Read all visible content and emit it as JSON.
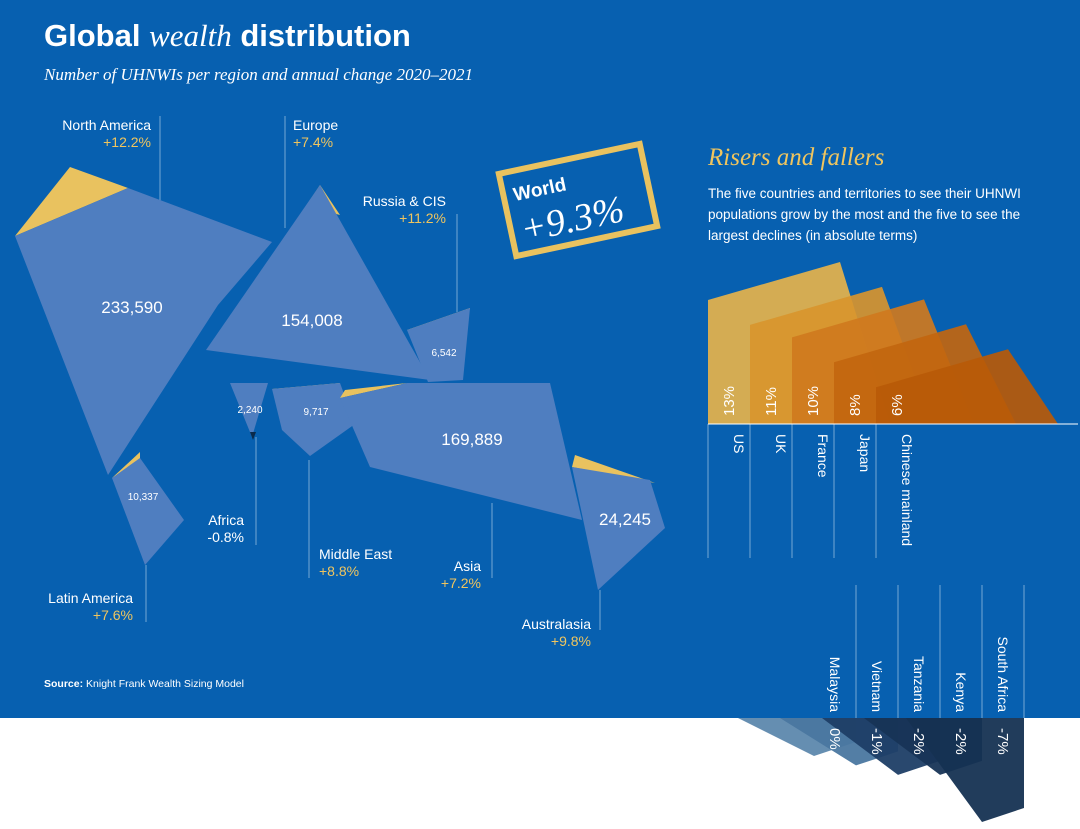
{
  "header": {
    "title_part1": "Global",
    "title_em": "wealth",
    "title_part2": "distribution",
    "subtitle": "Number of UHNWIs per region and annual change 2020–2021"
  },
  "world": {
    "label": "World",
    "value": "+9.3%"
  },
  "source": {
    "label": "Source:",
    "text": "Knight Frank Wealth Sizing Model"
  },
  "risers_fallers": {
    "title": "Risers and fallers",
    "description": "The five countries and territories to see their UHNWI populations grow by the most and the five to see the largest declines (in absolute terms)"
  },
  "colors": {
    "background": "#0760b0",
    "region_fill": "#4f7ec0",
    "gain_accent": "#e9c25f",
    "loss_accent": "#0b2a4a",
    "riser_colors": [
      "#e6b34b",
      "#d8952e",
      "#cf7a1e",
      "#c2660f",
      "#b85a08"
    ],
    "faller_colors": [
      "#5d88ad",
      "#4a77a0",
      "#1d3e66",
      "#173456",
      "#153152"
    ]
  },
  "chart_data": [
    {
      "type": "map",
      "title": "Global wealth distribution",
      "subtitle": "Number of UHNWIs per region and annual change 2020–2021",
      "regions": [
        {
          "name": "North America",
          "uhnwi": "233,590",
          "change": "+12.2%"
        },
        {
          "name": "Europe",
          "uhnwi": "154,008",
          "change": "+7.4%"
        },
        {
          "name": "Russia & CIS",
          "uhnwi": "6,542",
          "change": "+11.2%"
        },
        {
          "name": "Africa",
          "uhnwi": "2,240",
          "change": "-0.8%"
        },
        {
          "name": "Middle East",
          "uhnwi": "9,717",
          "change": "+8.8%"
        },
        {
          "name": "Asia",
          "uhnwi": "169,889",
          "change": "+7.2%"
        },
        {
          "name": "Australasia",
          "uhnwi": "24,245",
          "change": "+9.8%"
        },
        {
          "name": "Latin America",
          "uhnwi": "10,337",
          "change": "+7.6%"
        }
      ],
      "world_change": "+9.3%"
    },
    {
      "type": "bar",
      "title": "Risers and fallers",
      "risers": {
        "categories": [
          "US",
          "UK",
          "France",
          "Japan",
          "Chinese mainland"
        ],
        "labels": [
          "13%",
          "11%",
          "10%",
          "8%",
          "6%"
        ],
        "values": [
          13,
          11,
          10,
          8,
          6
        ]
      },
      "fallers": {
        "categories": [
          "Malaysia",
          "Vietnam",
          "Tanzania",
          "Kenya",
          "South Africa"
        ],
        "labels": [
          "0%",
          "-1%",
          "-2%",
          "-2%",
          "-7%"
        ],
        "values": [
          0,
          -1,
          -2,
          -2,
          -7
        ]
      }
    }
  ]
}
